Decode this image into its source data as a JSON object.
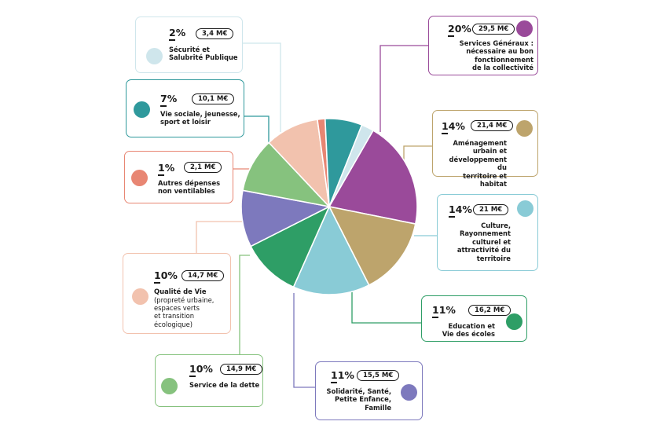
{
  "colors": {
    "services": "#9a4a9a",
    "amenagement": "#bda46c",
    "culture": "#89cbd6",
    "education": "#2e9e66",
    "solidarite": "#7d79bd",
    "dette": "#86c27e",
    "qualite": "#f2c2ae",
    "autres": "#e88673",
    "viesociale": "#2f999c",
    "securite": "#cfe6ec"
  },
  "chart_data": {
    "type": "pie",
    "start_angle_deg": -60,
    "direction": "clockwise",
    "slices": [
      {
        "key": "services",
        "percent": "20%",
        "value": 29.5,
        "amount": "29,5 M€",
        "label": "Services Généraux :\nnécessaire au bon\nfonctionnement\nde la collectivité"
      },
      {
        "key": "amenagement",
        "percent": "14%",
        "value": 21.4,
        "amount": "21,4 M€",
        "label": "Aménagement\nurbain et\ndéveloppement du\nterritoire et habitat"
      },
      {
        "key": "culture",
        "percent": "14%",
        "value": 21,
        "amount": "21 M€",
        "label": "Culture,\nRayonnement\nculturel et\nattractivité du\nterritoire"
      },
      {
        "key": "education",
        "percent": "11%",
        "value": 16.2,
        "amount": "16,2 M€",
        "label": "Education et\nVie des écoles"
      },
      {
        "key": "solidarite",
        "percent": "11%",
        "value": 15.5,
        "amount": "15,5 M€",
        "label": "Solidarité, Santé,\nPetite Enfance,\nFamille"
      },
      {
        "key": "dette",
        "percent": "10%",
        "value": 14.9,
        "amount": "14,9 M€",
        "label": "Service de la dette"
      },
      {
        "key": "qualite",
        "percent": "10%",
        "value": 14.7,
        "amount": "14,7 M€",
        "label": "Qualité de Vie",
        "sublabel": "(propreté urbaine,\nespaces verts\net transition\nécologique)"
      },
      {
        "key": "autres",
        "percent": "1%",
        "value": 2.1,
        "amount": "2,1 M€",
        "label": "Autres dépenses\nnon ventilables"
      },
      {
        "key": "viesociale",
        "percent": "7%",
        "value": 10.1,
        "amount": "10,1 M€",
        "label": "Vie sociale, jeunesse,\nsport et loisir"
      },
      {
        "key": "securite",
        "percent": "2%",
        "value": 3.4,
        "amount": "3,4 M€",
        "label": "Sécurité et\nSalubrité Publique"
      }
    ]
  }
}
